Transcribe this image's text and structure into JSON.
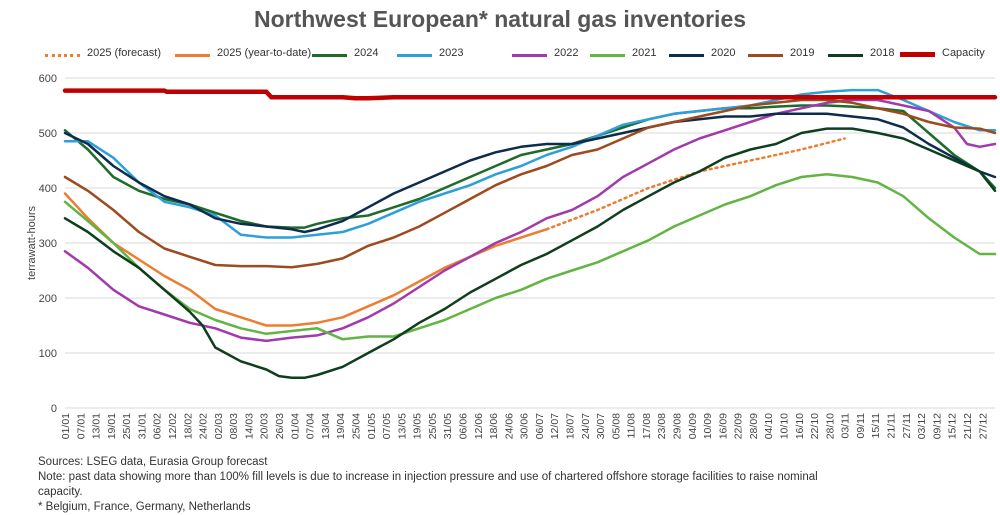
{
  "chart_data": {
    "type": "line",
    "title": "Northwest European* natural gas inventories",
    "ylabel": "terrawatt-hours",
    "xlabel": "",
    "ylim": [
      0,
      600
    ],
    "yticks": [
      0,
      100,
      200,
      300,
      400,
      500,
      600
    ],
    "x_unit": "day of year",
    "xlim": [
      1,
      366
    ],
    "xtick_labels": [
      "01/01",
      "07/01",
      "13/01",
      "19/01",
      "25/01",
      "31/01",
      "06/02",
      "12/02",
      "18/02",
      "24/02",
      "02/03",
      "08/03",
      "14/03",
      "20/03",
      "26/03",
      "01/04",
      "07/04",
      "13/04",
      "19/04",
      "25/04",
      "01/05",
      "07/05",
      "13/05",
      "19/05",
      "25/05",
      "31/05",
      "06/06",
      "12/06",
      "18/06",
      "24/06",
      "30/06",
      "06/07",
      "12/07",
      "18/07",
      "24/07",
      "30/07",
      "05/08",
      "11/08",
      "17/08",
      "23/08",
      "29/08",
      "04/09",
      "10/09",
      "16/09",
      "22/09",
      "28/09",
      "04/10",
      "10/10",
      "16/10",
      "22/10",
      "28/10",
      "03/11",
      "09/11",
      "15/11",
      "21/11",
      "27/11",
      "03/12",
      "09/12",
      "15/12",
      "21/12",
      "27/12"
    ],
    "grid": "horizontal",
    "legend_position": "top",
    "series": [
      {
        "name": "2025 (forecast)",
        "color": "#ED7D31",
        "dash": true,
        "width": 2.5,
        "x": [
          190,
          210,
          230,
          250,
          270,
          290,
          307
        ],
        "y": [
          325,
          360,
          400,
          430,
          450,
          470,
          490
        ]
      },
      {
        "name": "2025 (year-to-date)",
        "color": "#ED7D31",
        "width": 2.5,
        "x": [
          1,
          10,
          20,
          30,
          40,
          50,
          60,
          70,
          80,
          85,
          90,
          100,
          110,
          120,
          130,
          140,
          150,
          160,
          170,
          180,
          190
        ],
        "y": [
          390,
          345,
          300,
          270,
          240,
          215,
          180,
          165,
          150,
          150,
          150,
          155,
          165,
          185,
          205,
          230,
          255,
          275,
          295,
          310,
          325
        ]
      },
      {
        "name": "2024",
        "color": "#1E6B2A",
        "width": 2.5,
        "x": [
          1,
          10,
          20,
          30,
          40,
          50,
          60,
          70,
          80,
          90,
          95,
          100,
          110,
          120,
          130,
          140,
          150,
          160,
          170,
          180,
          190,
          200,
          210,
          220,
          230,
          240,
          250,
          260,
          270,
          280,
          290,
          300,
          310,
          320,
          330,
          340,
          350,
          360,
          366
        ],
        "y": [
          505,
          470,
          420,
          395,
          380,
          370,
          355,
          340,
          330,
          328,
          328,
          335,
          345,
          350,
          365,
          380,
          400,
          420,
          440,
          460,
          470,
          480,
          495,
          510,
          525,
          535,
          540,
          545,
          545,
          548,
          550,
          550,
          548,
          545,
          540,
          500,
          460,
          430,
          400
        ]
      },
      {
        "name": "2023",
        "color": "#2E9FD8",
        "width": 2.5,
        "x": [
          1,
          10,
          20,
          30,
          40,
          50,
          60,
          70,
          80,
          90,
          100,
          110,
          120,
          130,
          140,
          150,
          160,
          170,
          180,
          190,
          200,
          210,
          220,
          230,
          240,
          250,
          260,
          270,
          280,
          290,
          300,
          310,
          320,
          330,
          340,
          350,
          360,
          366
        ],
        "y": [
          485,
          485,
          455,
          410,
          375,
          365,
          350,
          315,
          310,
          310,
          315,
          320,
          335,
          355,
          375,
          390,
          405,
          425,
          440,
          460,
          475,
          495,
          515,
          525,
          535,
          540,
          545,
          550,
          560,
          570,
          575,
          578,
          578,
          560,
          540,
          520,
          505,
          505
        ]
      },
      {
        "name": "2022",
        "color": "#A23AAE",
        "width": 2.5,
        "x": [
          1,
          10,
          20,
          30,
          40,
          50,
          60,
          70,
          80,
          90,
          100,
          110,
          120,
          130,
          140,
          150,
          160,
          170,
          180,
          190,
          200,
          210,
          220,
          230,
          240,
          250,
          260,
          270,
          280,
          290,
          300,
          310,
          320,
          330,
          340,
          350,
          355,
          360,
          366
        ],
        "y": [
          285,
          255,
          215,
          185,
          170,
          155,
          145,
          128,
          122,
          128,
          132,
          145,
          165,
          190,
          220,
          250,
          275,
          300,
          320,
          345,
          360,
          385,
          420,
          445,
          470,
          490,
          505,
          520,
          535,
          545,
          555,
          560,
          560,
          550,
          540,
          510,
          480,
          475,
          480
        ]
      },
      {
        "name": "2021",
        "color": "#62B443",
        "width": 2.5,
        "x": [
          1,
          10,
          20,
          30,
          40,
          50,
          60,
          70,
          80,
          90,
          100,
          110,
          120,
          130,
          140,
          150,
          160,
          170,
          180,
          190,
          200,
          210,
          220,
          230,
          240,
          250,
          260,
          270,
          280,
          290,
          300,
          310,
          320,
          330,
          340,
          350,
          360,
          366
        ],
        "y": [
          375,
          340,
          300,
          255,
          215,
          180,
          160,
          145,
          135,
          140,
          145,
          125,
          130,
          130,
          145,
          160,
          180,
          200,
          215,
          235,
          250,
          265,
          285,
          305,
          330,
          350,
          370,
          385,
          405,
          420,
          425,
          420,
          410,
          385,
          345,
          310,
          280,
          280
        ]
      },
      {
        "name": "2020",
        "color": "#0E2C4E",
        "width": 2.5,
        "x": [
          1,
          10,
          20,
          30,
          40,
          50,
          60,
          70,
          80,
          90,
          95,
          100,
          110,
          120,
          130,
          140,
          150,
          160,
          170,
          180,
          190,
          200,
          210,
          220,
          230,
          240,
          250,
          260,
          270,
          280,
          290,
          300,
          310,
          320,
          330,
          340,
          350,
          360,
          366
        ],
        "y": [
          500,
          480,
          440,
          410,
          385,
          370,
          345,
          335,
          330,
          325,
          320,
          325,
          340,
          365,
          390,
          410,
          430,
          450,
          465,
          475,
          480,
          480,
          490,
          500,
          510,
          520,
          525,
          530,
          530,
          535,
          535,
          535,
          530,
          525,
          510,
          480,
          455,
          430,
          420
        ]
      },
      {
        "name": "2019",
        "color": "#9E4A1F",
        "width": 2.5,
        "x": [
          1,
          10,
          20,
          30,
          40,
          50,
          60,
          70,
          80,
          90,
          100,
          110,
          120,
          130,
          140,
          150,
          160,
          170,
          180,
          190,
          200,
          210,
          220,
          230,
          240,
          250,
          260,
          270,
          280,
          290,
          300,
          310,
          320,
          330,
          340,
          350,
          360,
          366
        ],
        "y": [
          420,
          395,
          360,
          320,
          290,
          275,
          260,
          258,
          258,
          256,
          262,
          272,
          295,
          310,
          330,
          355,
          380,
          405,
          425,
          440,
          460,
          470,
          490,
          510,
          520,
          530,
          540,
          550,
          555,
          560,
          560,
          555,
          545,
          535,
          520,
          510,
          508,
          500
        ]
      },
      {
        "name": "2018",
        "color": "#0F3E1E",
        "width": 2.5,
        "x": [
          1,
          10,
          20,
          30,
          40,
          50,
          55,
          60,
          70,
          80,
          85,
          90,
          95,
          100,
          110,
          120,
          130,
          140,
          150,
          160,
          170,
          180,
          190,
          200,
          210,
          220,
          230,
          240,
          250,
          260,
          270,
          280,
          290,
          300,
          310,
          320,
          330,
          335,
          340,
          350,
          360,
          366
        ],
        "y": [
          345,
          320,
          285,
          255,
          215,
          175,
          150,
          110,
          85,
          70,
          58,
          55,
          55,
          60,
          75,
          100,
          125,
          155,
          180,
          210,
          235,
          260,
          280,
          305,
          330,
          360,
          385,
          410,
          430,
          455,
          470,
          480,
          500,
          508,
          508,
          500,
          490,
          480,
          470,
          450,
          430,
          395
        ]
      },
      {
        "name": "Capacity",
        "color": "#C00000",
        "width": 4.5,
        "x": [
          1,
          40,
          41,
          80,
          82,
          100,
          110,
          115,
          120,
          130,
          366
        ],
        "y": [
          577,
          577,
          575,
          575,
          565,
          565,
          565,
          563,
          563,
          565,
          565
        ]
      }
    ]
  },
  "footnotes": [
    "Sources: LSEG data, Eurasia Group forecast",
    "Note: past data showing more than 100% fill levels is due to increase in injection pressure and use of chartered offshore storage facilities to raise nominal capacity.",
    "* Belgium, France, Germany, Netherlands"
  ]
}
